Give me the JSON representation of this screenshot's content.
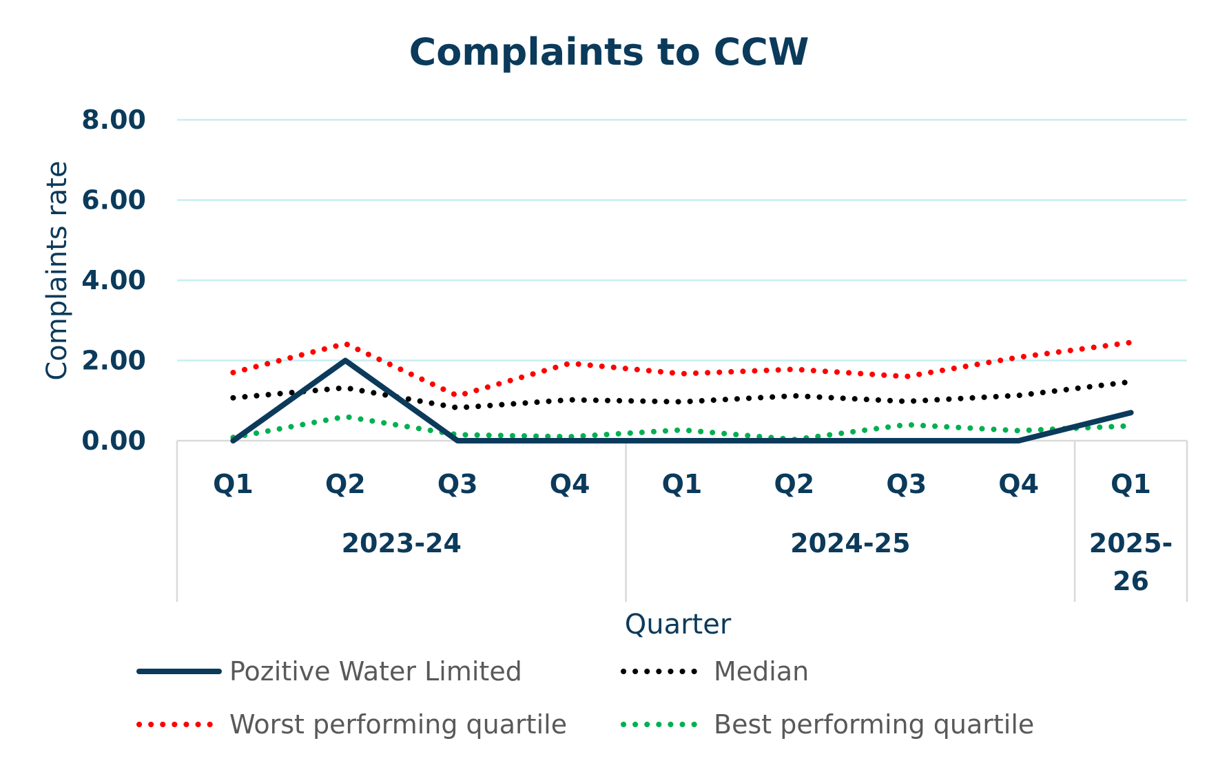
{
  "chart_data": {
    "type": "line",
    "title": "Complaints to CCW",
    "xlabel": "Quarter",
    "ylabel": "Complaints rate",
    "ylim": [
      0,
      8
    ],
    "yticks": [
      "0.00",
      "2.00",
      "4.00",
      "6.00",
      "8.00"
    ],
    "categories": [
      "Q1",
      "Q2",
      "Q3",
      "Q4",
      "Q1",
      "Q2",
      "Q3",
      "Q4",
      "Q1"
    ],
    "groups": [
      {
        "label": "2023-24",
        "label_lines": [
          "2023-24"
        ],
        "count": 4
      },
      {
        "label": "2024-25",
        "label_lines": [
          "2024-25"
        ],
        "count": 4
      },
      {
        "label": "2025-26",
        "label_lines": [
          "2025-",
          "26"
        ],
        "count": 1
      }
    ],
    "series": [
      {
        "name": "Pozitive Water Limited",
        "style": "solid",
        "color": "#0b3a5b",
        "values": [
          0.0,
          2.0,
          0.0,
          0.0,
          0.0,
          0.0,
          0.0,
          0.0,
          0.7
        ]
      },
      {
        "name": "Median",
        "style": "dotted",
        "color": "#000000",
        "values": [
          1.07,
          1.32,
          0.82,
          1.02,
          0.97,
          1.12,
          0.98,
          1.13,
          1.47
        ]
      },
      {
        "name": "Worst performing quartile",
        "style": "dotted",
        "color": "#ff0000",
        "values": [
          1.7,
          2.42,
          1.12,
          1.93,
          1.67,
          1.78,
          1.6,
          2.08,
          2.45
        ]
      },
      {
        "name": "Best performing quartile",
        "style": "dotted",
        "color": "#00b050",
        "values": [
          0.08,
          0.6,
          0.15,
          0.1,
          0.27,
          0.03,
          0.4,
          0.25,
          0.37
        ]
      }
    ],
    "grid": true,
    "gridline_color": "#c6eef3",
    "legend_position": "bottom"
  }
}
